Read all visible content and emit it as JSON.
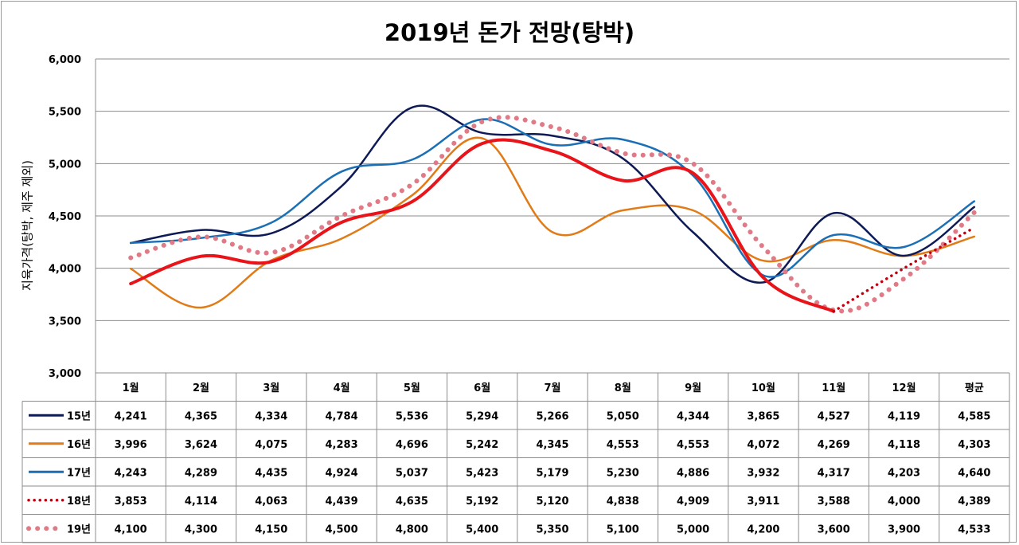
{
  "chart_data": {
    "type": "line",
    "title": "2019년 돈가 전망(탕박)",
    "ylabel": "지육가격(탕박, 제주 제외)",
    "xlabel": "",
    "ylim": [
      3000,
      6000
    ],
    "y_ticks": [
      "3,000",
      "3,500",
      "4,000",
      "4,500",
      "5,000",
      "5,500",
      "6,000"
    ],
    "y_tick_values": [
      3000,
      3500,
      4000,
      4500,
      5000,
      5500,
      6000
    ],
    "grid": true,
    "legend": "data-table",
    "categories": [
      "1월",
      "2월",
      "3월",
      "4월",
      "5월",
      "6월",
      "7월",
      "8월",
      "9월",
      "10월",
      "11월",
      "12월",
      "평균"
    ],
    "series": [
      {
        "name": "15년",
        "color": "#0d1a55",
        "style": "solid",
        "values": [
          4241,
          4365,
          4334,
          4784,
          5536,
          5294,
          5266,
          5050,
          4344,
          3865,
          4527,
          4119,
          4585
        ],
        "labels": [
          "4,241",
          "4,365",
          "4,334",
          "4,784",
          "5,536",
          "5,294",
          "5,266",
          "5,050",
          "4,344",
          "3,865",
          "4,527",
          "4,119",
          "4,585"
        ]
      },
      {
        "name": "16년",
        "color": "#e07b17",
        "style": "solid",
        "values": [
          3996,
          3624,
          4075,
          4283,
          4696,
          5242,
          4345,
          4553,
          4553,
          4072,
          4269,
          4118,
          4303
        ],
        "labels": [
          "3,996",
          "3,624",
          "4,075",
          "4,283",
          "4,696",
          "5,242",
          "4,345",
          "4,553",
          "4,553",
          "4,072",
          "4,269",
          "4,118",
          "4,303"
        ]
      },
      {
        "name": "17년",
        "color": "#1a6fb5",
        "style": "solid",
        "values": [
          4243,
          4289,
          4435,
          4924,
          5037,
          5423,
          5179,
          5230,
          4886,
          3932,
          4317,
          4203,
          4640
        ],
        "labels": [
          "4,243",
          "4,289",
          "4,435",
          "4,924",
          "5,037",
          "5,423",
          "5,179",
          "5,230",
          "4,886",
          "3,932",
          "4,317",
          "4,203",
          "4,640"
        ]
      },
      {
        "name": "18년",
        "color": "#e8141a",
        "style": "thick-solid-then-dotted",
        "values": [
          3853,
          4114,
          4063,
          4439,
          4635,
          5192,
          5120,
          4838,
          4909,
          3911,
          3588,
          4000,
          4389
        ],
        "labels": [
          "3,853",
          "4,114",
          "4,063",
          "4,439",
          "4,635",
          "5,192",
          "5,120",
          "4,838",
          "4,909",
          "3,911",
          "3,588",
          "4,000",
          "4,389"
        ]
      },
      {
        "name": "19년",
        "color": "#e07a86",
        "style": "dotted",
        "values": [
          4100,
          4300,
          4150,
          4500,
          4800,
          5400,
          5350,
          5100,
          5000,
          4200,
          3600,
          3900,
          4533
        ],
        "labels": [
          "4,100",
          "4,300",
          "4,150",
          "4,500",
          "4,800",
          "5,400",
          "5,350",
          "5,100",
          "5,000",
          "4,200",
          "3,600",
          "3,900",
          "4,533"
        ]
      }
    ]
  }
}
